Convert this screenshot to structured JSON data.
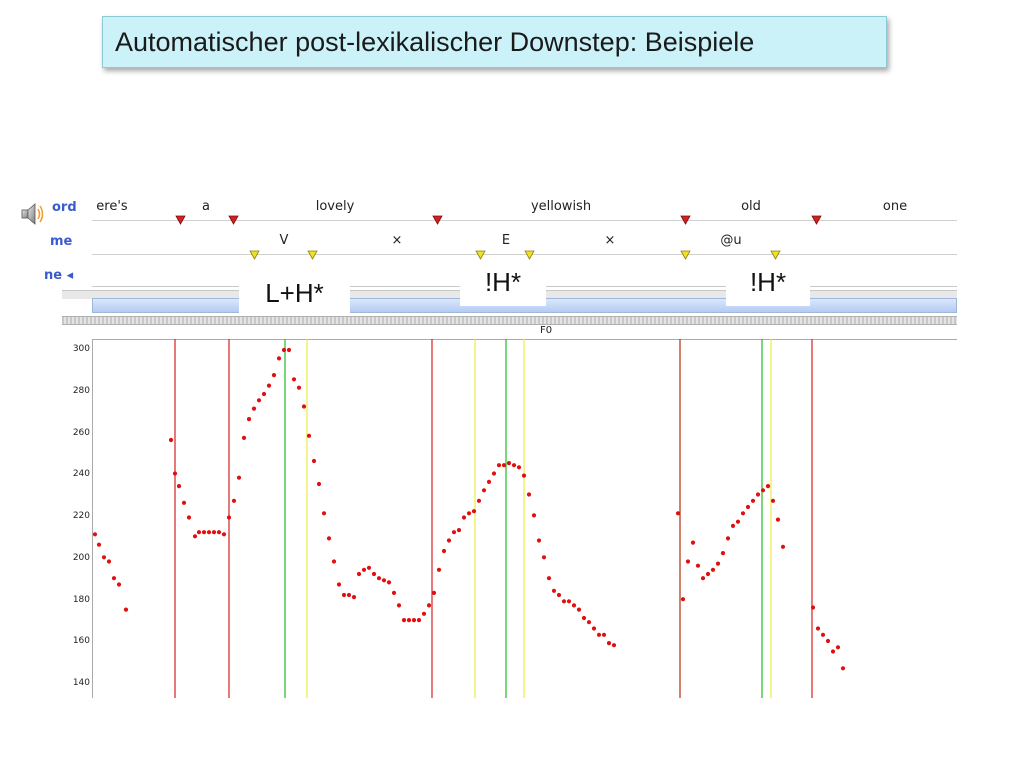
{
  "slide": {
    "title": "Automatischer post-lexikalischer Downstep: Beispiele"
  },
  "annotation": {
    "speaker_icon": "speaker-icon",
    "tier_labels": {
      "word": "ord",
      "phoneme": "me",
      "tone": "ne ◂"
    },
    "words": [
      "ere's",
      "a",
      "lovely",
      "yellowish",
      "old",
      "one"
    ],
    "phonemes": [
      "V",
      "×",
      "E",
      "×",
      "@u"
    ],
    "accents": [
      "L+H*",
      "!H*",
      "!H*"
    ],
    "colors": {
      "word_marker": "#d42020",
      "phone_marker": "#f0e020",
      "accent_green": "#22bb22",
      "scrollbar": "#bcd2f6"
    }
  },
  "f0_panel": {
    "title": "F0"
  },
  "chart_data": {
    "type": "scatter",
    "title": "F0",
    "ylim": [
      135,
      305
    ],
    "yticks": [
      140,
      160,
      180,
      200,
      220,
      240,
      260,
      280,
      300
    ],
    "ytick_labels": [
      "140",
      "160",
      "180",
      "200",
      "220",
      "240",
      "260",
      "280",
      "300"
    ],
    "color": "#e01010",
    "series": [
      {
        "points": [
          [
            95,
            212
          ],
          [
            99,
            207
          ],
          [
            104,
            201
          ],
          [
            109,
            199
          ],
          [
            114,
            191
          ],
          [
            119,
            188
          ],
          [
            126,
            176
          ],
          [
            171,
            257
          ],
          [
            175,
            241
          ],
          [
            179,
            235
          ],
          [
            184,
            227
          ],
          [
            189,
            220
          ],
          [
            195,
            211
          ],
          [
            199,
            213
          ],
          [
            204,
            213
          ],
          [
            209,
            213
          ],
          [
            214,
            213
          ],
          [
            219,
            213
          ],
          [
            224,
            212
          ],
          [
            229,
            220
          ],
          [
            234,
            228
          ],
          [
            239,
            239
          ],
          [
            244,
            258
          ],
          [
            249,
            267
          ],
          [
            254,
            272
          ],
          [
            259,
            276
          ],
          [
            264,
            279
          ],
          [
            269,
            283
          ],
          [
            274,
            288
          ],
          [
            279,
            296
          ],
          [
            284,
            300
          ],
          [
            289,
            300
          ],
          [
            294,
            286
          ],
          [
            299,
            282
          ],
          [
            304,
            273
          ],
          [
            309,
            259
          ],
          [
            314,
            247
          ],
          [
            319,
            236
          ],
          [
            324,
            222
          ],
          [
            329,
            210
          ],
          [
            334,
            199
          ],
          [
            339,
            188
          ],
          [
            344,
            183
          ],
          [
            349,
            183
          ],
          [
            354,
            182
          ],
          [
            359,
            193
          ],
          [
            364,
            195
          ],
          [
            369,
            196
          ],
          [
            374,
            193
          ],
          [
            379,
            191
          ],
          [
            384,
            190
          ],
          [
            389,
            189
          ],
          [
            394,
            184
          ],
          [
            399,
            178
          ],
          [
            404,
            171
          ],
          [
            409,
            171
          ],
          [
            414,
            171
          ],
          [
            419,
            171
          ],
          [
            424,
            174
          ],
          [
            429,
            178
          ],
          [
            434,
            184
          ],
          [
            439,
            195
          ],
          [
            444,
            204
          ],
          [
            449,
            209
          ],
          [
            454,
            213
          ],
          [
            459,
            214
          ],
          [
            464,
            220
          ],
          [
            469,
            222
          ],
          [
            474,
            223
          ],
          [
            479,
            228
          ],
          [
            484,
            233
          ],
          [
            489,
            237
          ],
          [
            494,
            241
          ],
          [
            499,
            245
          ],
          [
            504,
            245
          ],
          [
            509,
            246
          ],
          [
            514,
            245
          ],
          [
            519,
            244
          ],
          [
            524,
            240
          ],
          [
            529,
            231
          ],
          [
            534,
            221
          ],
          [
            539,
            209
          ],
          [
            544,
            201
          ],
          [
            549,
            191
          ],
          [
            554,
            185
          ],
          [
            559,
            183
          ],
          [
            564,
            180
          ],
          [
            569,
            180
          ],
          [
            574,
            178
          ],
          [
            579,
            176
          ],
          [
            584,
            172
          ],
          [
            589,
            170
          ],
          [
            594,
            167
          ],
          [
            599,
            164
          ],
          [
            604,
            164
          ],
          [
            609,
            160
          ],
          [
            614,
            159
          ],
          [
            678,
            222
          ],
          [
            683,
            181
          ],
          [
            688,
            199
          ],
          [
            693,
            208
          ],
          [
            698,
            197
          ],
          [
            703,
            191
          ],
          [
            708,
            193
          ],
          [
            713,
            195
          ],
          [
            718,
            198
          ],
          [
            723,
            203
          ],
          [
            728,
            210
          ],
          [
            733,
            216
          ],
          [
            738,
            218
          ],
          [
            743,
            222
          ],
          [
            748,
            225
          ],
          [
            753,
            228
          ],
          [
            758,
            231
          ],
          [
            763,
            233
          ],
          [
            768,
            235
          ],
          [
            773,
            228
          ],
          [
            778,
            219
          ],
          [
            783,
            206
          ],
          [
            813,
            177
          ],
          [
            818,
            167
          ],
          [
            823,
            164
          ],
          [
            828,
            161
          ],
          [
            833,
            156
          ],
          [
            838,
            158
          ],
          [
            843,
            148
          ]
        ]
      }
    ]
  }
}
